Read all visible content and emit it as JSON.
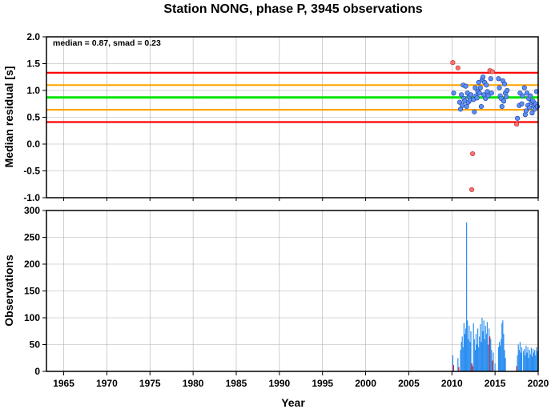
{
  "title": "Station NONG, phase P, 3945 observations",
  "xlabel": "Year",
  "colors": {
    "median_line": "#00e600",
    "inner_band": "#ffa500",
    "outer_band": "#ff0000",
    "point_normal_fill": "#5b8ff2",
    "point_normal_stroke": "#1f3aa3",
    "point_outlier_fill": "#f87070",
    "bar_normal": "#2d8ff0",
    "bar_outlier": "#e02020",
    "grid": "#b0b0b0"
  },
  "chart_data": [
    {
      "type": "scatter",
      "ylabel": "Median residual [s]",
      "annotation": "median = 0.87, smad = 0.23",
      "xlim": [
        1963,
        2020
      ],
      "ylim": [
        -1.0,
        2.0
      ],
      "x_ticks": [
        1965,
        1970,
        1975,
        1980,
        1985,
        1990,
        1995,
        2000,
        2005,
        2010,
        2015,
        2020
      ],
      "y_ticks": [
        -1.0,
        -0.5,
        0.0,
        0.5,
        1.0,
        1.5,
        2.0
      ],
      "y_tick_labels": [
        "-1.0",
        "-0.5",
        "0.0",
        "0.5",
        "1.0",
        "1.5",
        "2.0"
      ],
      "grid": true,
      "reference_lines": [
        {
          "kind": "median",
          "y": 0.87
        },
        {
          "kind": "inner",
          "y": 1.1
        },
        {
          "kind": "inner",
          "y": 0.64
        },
        {
          "kind": "outer",
          "y": 1.33
        },
        {
          "kind": "outer",
          "y": 0.41
        }
      ],
      "points": [
        {
          "x": 2010.1,
          "y": 1.52,
          "outlier": true
        },
        {
          "x": 2010.7,
          "y": 1.42,
          "outlier": true
        },
        {
          "x": 2012.4,
          "y": -0.18,
          "outlier": true
        },
        {
          "x": 2012.3,
          "y": -0.85,
          "outlier": true
        },
        {
          "x": 2014.4,
          "y": 1.37,
          "outlier": true
        },
        {
          "x": 2014.7,
          "y": 1.35,
          "outlier": true
        },
        {
          "x": 2017.5,
          "y": 0.37,
          "outlier": true
        },
        {
          "x": 2010.2,
          "y": 0.95
        },
        {
          "x": 2010.9,
          "y": 0.78
        },
        {
          "x": 2011.0,
          "y": 0.65
        },
        {
          "x": 2011.1,
          "y": 0.92
        },
        {
          "x": 2011.2,
          "y": 0.72
        },
        {
          "x": 2011.3,
          "y": 1.1
        },
        {
          "x": 2011.4,
          "y": 0.85
        },
        {
          "x": 2011.5,
          "y": 0.8
        },
        {
          "x": 2011.6,
          "y": 1.08
        },
        {
          "x": 2011.7,
          "y": 0.7
        },
        {
          "x": 2011.8,
          "y": 0.95
        },
        {
          "x": 2011.9,
          "y": 0.78
        },
        {
          "x": 2012.0,
          "y": 0.88
        },
        {
          "x": 2012.1,
          "y": 0.82
        },
        {
          "x": 2012.2,
          "y": 0.92
        },
        {
          "x": 2012.5,
          "y": 0.83
        },
        {
          "x": 2012.6,
          "y": 0.6
        },
        {
          "x": 2012.7,
          "y": 1.05
        },
        {
          "x": 2012.8,
          "y": 0.9
        },
        {
          "x": 2012.9,
          "y": 0.86
        },
        {
          "x": 2013.0,
          "y": 0.98
        },
        {
          "x": 2013.1,
          "y": 1.15
        },
        {
          "x": 2013.2,
          "y": 0.95
        },
        {
          "x": 2013.3,
          "y": 1.05
        },
        {
          "x": 2013.4,
          "y": 0.7
        },
        {
          "x": 2013.5,
          "y": 1.2
        },
        {
          "x": 2013.6,
          "y": 1.25
        },
        {
          "x": 2013.7,
          "y": 0.92
        },
        {
          "x": 2013.8,
          "y": 1.15
        },
        {
          "x": 2013.9,
          "y": 0.85
        },
        {
          "x": 2014.0,
          "y": 1.1
        },
        {
          "x": 2014.1,
          "y": 0.98
        },
        {
          "x": 2014.2,
          "y": 0.9
        },
        {
          "x": 2014.5,
          "y": 1.22
        },
        {
          "x": 2014.6,
          "y": 0.95
        },
        {
          "x": 2015.4,
          "y": 1.22
        },
        {
          "x": 2015.5,
          "y": 1.05
        },
        {
          "x": 2015.6,
          "y": 0.9
        },
        {
          "x": 2015.7,
          "y": 0.85
        },
        {
          "x": 2015.8,
          "y": 0.7
        },
        {
          "x": 2015.9,
          "y": 1.18
        },
        {
          "x": 2016.0,
          "y": 0.8
        },
        {
          "x": 2016.1,
          "y": 1.12
        },
        {
          "x": 2016.2,
          "y": 0.95
        },
        {
          "x": 2016.3,
          "y": 0.88
        },
        {
          "x": 2016.4,
          "y": 1.0
        },
        {
          "x": 2017.6,
          "y": 0.48
        },
        {
          "x": 2017.8,
          "y": 0.72
        },
        {
          "x": 2017.9,
          "y": 0.95
        },
        {
          "x": 2018.1,
          "y": 0.75
        },
        {
          "x": 2018.2,
          "y": 0.9
        },
        {
          "x": 2018.4,
          "y": 1.05
        },
        {
          "x": 2018.5,
          "y": 0.55
        },
        {
          "x": 2018.6,
          "y": 0.62
        },
        {
          "x": 2018.7,
          "y": 0.95
        },
        {
          "x": 2018.8,
          "y": 0.72
        },
        {
          "x": 2018.9,
          "y": 0.85
        },
        {
          "x": 2019.0,
          "y": 0.68
        },
        {
          "x": 2019.1,
          "y": 0.9
        },
        {
          "x": 2019.2,
          "y": 0.78
        },
        {
          "x": 2019.3,
          "y": 0.58
        },
        {
          "x": 2019.4,
          "y": 0.8
        },
        {
          "x": 2019.5,
          "y": 0.72
        },
        {
          "x": 2019.6,
          "y": 0.65
        },
        {
          "x": 2019.7,
          "y": 0.75
        },
        {
          "x": 2019.8,
          "y": 0.98
        },
        {
          "x": 2019.9,
          "y": 0.7
        }
      ]
    },
    {
      "type": "bar",
      "ylabel": "Observations",
      "xlim": [
        1963,
        2020
      ],
      "ylim": [
        0,
        300
      ],
      "x_ticks": [
        1965,
        1970,
        1975,
        1980,
        1985,
        1990,
        1995,
        2000,
        2005,
        2010,
        2015,
        2020
      ],
      "y_ticks": [
        0,
        50,
        100,
        150,
        200,
        250,
        300
      ],
      "y_tick_labels": [
        "0",
        "50",
        "100",
        "150",
        "200",
        "250",
        "300"
      ],
      "grid": true,
      "bars": [
        {
          "x": 2010.1,
          "value": 30
        },
        {
          "x": 2010.2,
          "value": 12,
          "outlier": true
        },
        {
          "x": 2010.7,
          "value": 25
        },
        {
          "x": 2010.8,
          "value": 8,
          "outlier": true
        },
        {
          "x": 2011.0,
          "value": 40
        },
        {
          "x": 2011.1,
          "value": 55
        },
        {
          "x": 2011.2,
          "value": 65
        },
        {
          "x": 2011.3,
          "value": 45
        },
        {
          "x": 2011.4,
          "value": 90
        },
        {
          "x": 2011.5,
          "value": 70
        },
        {
          "x": 2011.6,
          "value": 80
        },
        {
          "x": 2011.7,
          "value": 278
        },
        {
          "x": 2011.8,
          "value": 95
        },
        {
          "x": 2011.9,
          "value": 60
        },
        {
          "x": 2012.0,
          "value": 85
        },
        {
          "x": 2012.1,
          "value": 55
        },
        {
          "x": 2012.2,
          "value": 75
        },
        {
          "x": 2012.3,
          "value": 15,
          "outlier": true
        },
        {
          "x": 2012.4,
          "value": 10,
          "outlier": true
        },
        {
          "x": 2012.5,
          "value": 90
        },
        {
          "x": 2012.6,
          "value": 60
        },
        {
          "x": 2012.7,
          "value": 40
        },
        {
          "x": 2012.8,
          "value": 70
        },
        {
          "x": 2012.9,
          "value": 50
        },
        {
          "x": 2013.0,
          "value": 80
        },
        {
          "x": 2013.1,
          "value": 45
        },
        {
          "x": 2013.2,
          "value": 65
        },
        {
          "x": 2013.3,
          "value": 88
        },
        {
          "x": 2013.4,
          "value": 55
        },
        {
          "x": 2013.5,
          "value": 100
        },
        {
          "x": 2013.6,
          "value": 75
        },
        {
          "x": 2013.7,
          "value": 95
        },
        {
          "x": 2013.8,
          "value": 60
        },
        {
          "x": 2013.9,
          "value": 85
        },
        {
          "x": 2014.0,
          "value": 70
        },
        {
          "x": 2014.1,
          "value": 92
        },
        {
          "x": 2014.2,
          "value": 50
        },
        {
          "x": 2014.3,
          "value": 80
        },
        {
          "x": 2014.4,
          "value": 65,
          "outlier": true
        },
        {
          "x": 2014.5,
          "value": 60
        },
        {
          "x": 2014.6,
          "value": 40
        },
        {
          "x": 2014.7,
          "value": 20,
          "outlier": true
        },
        {
          "x": 2014.8,
          "value": 35
        },
        {
          "x": 2015.0,
          "value": 15
        },
        {
          "x": 2015.4,
          "value": 45
        },
        {
          "x": 2015.5,
          "value": 55
        },
        {
          "x": 2015.6,
          "value": 48
        },
        {
          "x": 2015.7,
          "value": 60
        },
        {
          "x": 2015.8,
          "value": 90
        },
        {
          "x": 2015.9,
          "value": 95
        },
        {
          "x": 2016.0,
          "value": 70
        },
        {
          "x": 2016.1,
          "value": 40
        },
        {
          "x": 2016.2,
          "value": 25
        },
        {
          "x": 2017.5,
          "value": 10,
          "outlier": true
        },
        {
          "x": 2017.6,
          "value": 30
        },
        {
          "x": 2017.7,
          "value": 50
        },
        {
          "x": 2017.8,
          "value": 40
        },
        {
          "x": 2017.9,
          "value": 55
        },
        {
          "x": 2018.0,
          "value": 35
        },
        {
          "x": 2018.1,
          "value": 45
        },
        {
          "x": 2018.3,
          "value": 38
        },
        {
          "x": 2018.4,
          "value": 42
        },
        {
          "x": 2018.5,
          "value": 30
        },
        {
          "x": 2018.6,
          "value": 48
        },
        {
          "x": 2018.7,
          "value": 35
        },
        {
          "x": 2018.8,
          "value": 45
        },
        {
          "x": 2018.9,
          "value": 25
        },
        {
          "x": 2019.0,
          "value": 40
        },
        {
          "x": 2019.1,
          "value": 32
        },
        {
          "x": 2019.2,
          "value": 44
        },
        {
          "x": 2019.3,
          "value": 28
        },
        {
          "x": 2019.4,
          "value": 42
        },
        {
          "x": 2019.5,
          "value": 35
        },
        {
          "x": 2019.6,
          "value": 40
        },
        {
          "x": 2019.7,
          "value": 30
        },
        {
          "x": 2019.8,
          "value": 45
        },
        {
          "x": 2019.9,
          "value": 38
        }
      ]
    }
  ]
}
